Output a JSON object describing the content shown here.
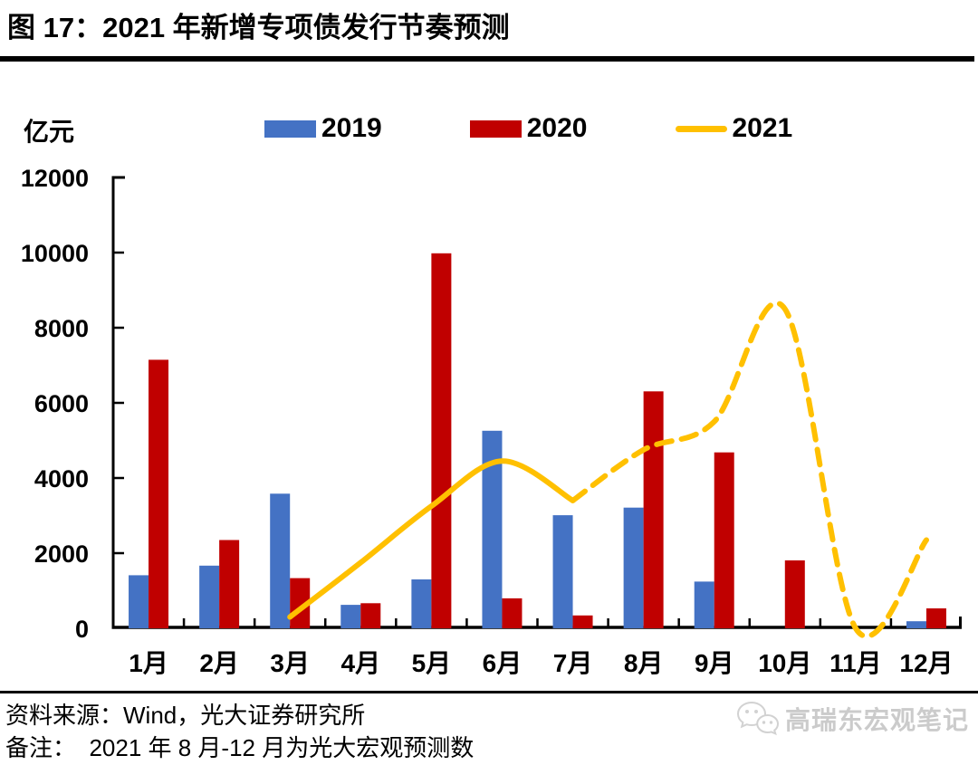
{
  "header": {
    "title": "图 17：2021 年新增专项债发行节奏预测"
  },
  "chart_data": {
    "type": "bar+line",
    "title": "2021 年新增专项债发行节奏预测",
    "ylabel": "亿元",
    "ylim": [
      0,
      12000
    ],
    "yticks": [
      0,
      2000,
      4000,
      6000,
      8000,
      10000,
      12000
    ],
    "grid": false,
    "legend_position": "top",
    "categories": [
      "1月",
      "2月",
      "3月",
      "4月",
      "5月",
      "6月",
      "7月",
      "8月",
      "9月",
      "10月",
      "11月",
      "12月"
    ],
    "series": [
      {
        "name": "2019",
        "type": "bar",
        "color": "#4472C4",
        "values": [
          1412,
          1667,
          3582,
          625,
          1302,
          5258,
          3009,
          3213,
          1243,
          0,
          0,
          189
        ]
      },
      {
        "name": "2020",
        "type": "bar",
        "color": "#C00000",
        "values": [
          7148,
          2349,
          1335,
          668,
          9980,
          797,
          343,
          6307,
          4682,
          1808,
          0,
          531
        ]
      },
      {
        "name": "2021",
        "type": "line",
        "color": "#FFC000",
        "values": [
          null,
          null,
          300,
          1750,
          3250,
          4450,
          3400,
          4750,
          5500,
          8500,
          0,
          2350
        ],
        "solid_from_index": 2,
        "solid_to_index": 6,
        "dashed_from_index": 6,
        "dashed_to_index": 11
      }
    ]
  },
  "footer": {
    "source": "资料来源：Wind，光大证券研究所",
    "note": "备注：  2021 年 8 月-12 月为光大宏观预测数"
  },
  "watermark": {
    "icon": "wechat-icon",
    "text": "高瑞东宏观笔记"
  }
}
